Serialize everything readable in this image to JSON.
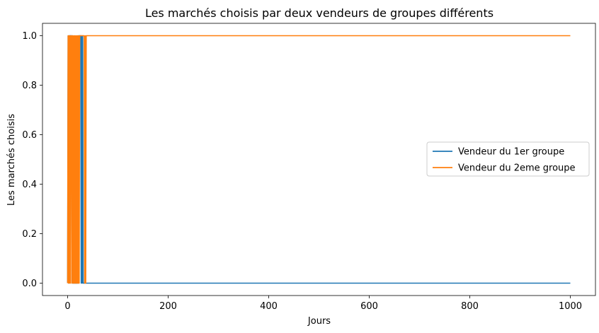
{
  "chart_data": {
    "type": "line",
    "title": "Les marchés choisis par deux vendeurs de groupes différents",
    "xlabel": "Jours",
    "ylabel": "Les marchés choisis",
    "xlim": [
      -50,
      1050
    ],
    "ylim": [
      -0.05,
      1.05
    ],
    "xticks": [
      0,
      200,
      400,
      600,
      800,
      1000
    ],
    "xtick_labels": [
      "0",
      "200",
      "400",
      "600",
      "800",
      "1000"
    ],
    "yticks": [
      0.0,
      0.2,
      0.4,
      0.6,
      0.8,
      1.0
    ],
    "ytick_labels": [
      "0.0",
      "0.2",
      "0.4",
      "0.6",
      "0.8",
      "1.0"
    ],
    "grid": false,
    "legend_position": "center-right",
    "series": [
      {
        "name": "Vendeur du 1er groupe",
        "color": "#1f77b4",
        "x": [
          0,
          1,
          2,
          3,
          8,
          9,
          10,
          11,
          20,
          21,
          22,
          23,
          26,
          27,
          28,
          29,
          30,
          31,
          32,
          33,
          1000
        ],
        "y": [
          0,
          1,
          0,
          1,
          1,
          0,
          1,
          0,
          0,
          1,
          0,
          1,
          1,
          0,
          1,
          0,
          1,
          0,
          0,
          0,
          0
        ]
      },
      {
        "name": "Vendeur du 2eme groupe",
        "color": "#ff7f0e",
        "x": [
          0,
          1,
          2,
          3,
          4,
          5,
          6,
          7,
          8,
          9,
          10,
          11,
          12,
          13,
          14,
          15,
          16,
          17,
          18,
          19,
          20,
          21,
          22,
          23,
          24,
          25,
          26,
          27,
          28,
          29,
          30,
          31,
          32,
          33,
          34,
          35,
          36,
          37,
          38,
          1000
        ],
        "y": [
          0,
          1,
          0,
          1,
          0,
          1,
          0,
          1,
          1,
          0,
          1,
          0,
          1,
          0,
          1,
          0,
          1,
          0,
          1,
          0,
          1,
          0,
          1,
          0,
          1,
          1,
          1,
          1,
          1,
          1,
          1,
          1,
          1,
          1,
          0,
          1,
          0,
          1,
          1,
          1
        ]
      }
    ]
  }
}
